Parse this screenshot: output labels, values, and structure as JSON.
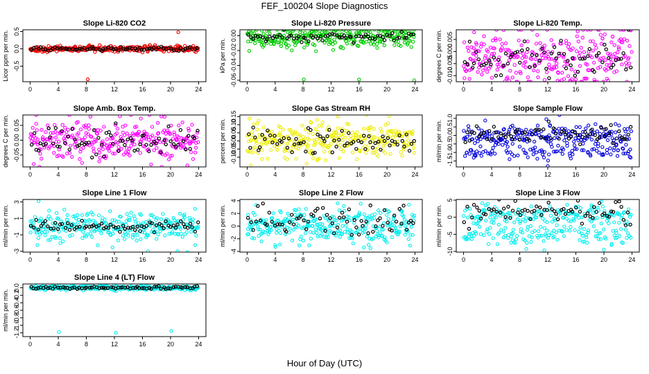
{
  "figure": {
    "title": "FEF_100204  Slope Diagnostics",
    "xlabel": "Hour of Day (UTC)"
  },
  "chart_data": [
    {
      "type": "scatter",
      "title": "Slope Li-820 CO2",
      "ylabel": "Licor ppm per min.",
      "xlim": [
        0,
        24
      ],
      "xticks": [
        0,
        4,
        8,
        12,
        16,
        20,
        24
      ],
      "ylim": [
        -0.95,
        0.55
      ],
      "yticks": [
        -0.5,
        0.0,
        0.5
      ],
      "ytick_labels": [
        "-0.5",
        "0.0",
        "0.5"
      ],
      "color": "#ee0000",
      "cloud_center": 0.0,
      "cloud_spread": 0.04,
      "black_center": 0.0,
      "black_spread": 0.03,
      "outliers": [
        [
          8.2,
          -0.88
        ],
        [
          21.1,
          0.48
        ]
      ]
    },
    {
      "type": "scatter",
      "title": "Slope Li-820 Pressure",
      "ylabel": "kPa per min.",
      "xlim": [
        0,
        24
      ],
      "xticks": [
        0,
        4,
        8,
        12,
        16,
        20,
        24
      ],
      "ylim": [
        -0.062,
        0.008
      ],
      "yticks": [
        -0.06,
        -0.04,
        -0.02,
        0.0
      ],
      "ytick_labels": [
        "-0.06",
        "-0.04",
        "-0.02",
        "0.00"
      ],
      "color": "#00cc00",
      "cloud_center": -0.002,
      "cloud_spread": 0.007,
      "black_center": -0.002,
      "black_spread": 0.003,
      "outliers": [
        [
          8.1,
          -0.059
        ],
        [
          16.0,
          -0.059
        ],
        [
          23.9,
          -0.06
        ]
      ]
    },
    {
      "type": "scatter",
      "title": "Slope Li-820 Temp.",
      "ylabel": "degrees C per min.",
      "xlim": [
        0,
        24
      ],
      "xticks": [
        0,
        4,
        8,
        12,
        16,
        20,
        24
      ],
      "ylim": [
        -0.0125,
        0.009
      ],
      "yticks": [
        -0.01,
        -0.005,
        0.0,
        0.005
      ],
      "ytick_labels": [
        "-0.010",
        "-0.005",
        "0.000",
        "0.005"
      ],
      "color": "#ff00ff",
      "cloud_center": -0.002,
      "cloud_spread": 0.006,
      "black_center": -0.003,
      "black_spread": 0.004,
      "outliers": [
        [
          6.5,
          -0.012
        ],
        [
          15.2,
          -0.012
        ],
        [
          20.6,
          -0.012
        ],
        [
          1.5,
          0.008
        ]
      ]
    },
    {
      "type": "scatter",
      "title": "Slope Amb. Box Temp.",
      "ylabel": "degrees C per min.",
      "xlim": [
        0,
        24
      ],
      "xticks": [
        0,
        4,
        8,
        12,
        16,
        20,
        24
      ],
      "ylim": [
        -0.09,
        0.085
      ],
      "yticks": [
        -0.05,
        0.0,
        0.05
      ],
      "ytick_labels": [
        "-0.05",
        "0.00",
        "0.05"
      ],
      "color": "#ff00ff",
      "cloud_center": 0.0,
      "cloud_spread": 0.035,
      "black_center": -0.005,
      "black_spread": 0.03,
      "outliers": [
        [
          0.5,
          -0.08
        ],
        [
          22.4,
          -0.085
        ],
        [
          18.7,
          0.08
        ]
      ]
    },
    {
      "type": "scatter",
      "title": "Slope Gas Stream RH",
      "ylabel": "percent per min.",
      "xlim": [
        0,
        24
      ],
      "xticks": [
        0,
        4,
        8,
        12,
        16,
        20,
        24
      ],
      "ylim": [
        -0.16,
        0.16
      ],
      "yticks": [
        -0.1,
        -0.05,
        0.0,
        0.05,
        0.1,
        0.15
      ],
      "ytick_labels": [
        "-0.10",
        "-0.05",
        "0.00",
        "0.05",
        "0.10",
        "0.15"
      ],
      "color": "#eeee00",
      "cloud_center": 0.0,
      "cloud_spread": 0.05,
      "black_center": 0.0,
      "black_spread": 0.04,
      "outliers": [
        [
          0.5,
          -0.15
        ],
        [
          10.0,
          0.13
        ],
        [
          13.0,
          0.15
        ],
        [
          8.5,
          -0.14
        ]
      ]
    },
    {
      "type": "scatter",
      "title": "Slope Sample Flow",
      "ylabel": "ml/min per min.",
      "xlim": [
        0,
        24
      ],
      "xticks": [
        0,
        4,
        8,
        12,
        16,
        20,
        24
      ],
      "ylim": [
        -1.85,
        1.2
      ],
      "yticks": [
        -1.5,
        -1.0,
        -0.5,
        0.0,
        0.5,
        1.0
      ],
      "ytick_labels": [
        "-1.5",
        "-1.0",
        "-0.5",
        "0.0",
        "0.5",
        "1.0"
      ],
      "color": "#0000dd",
      "cloud_center": 0.0,
      "cloud_spread": 0.3,
      "black_center": 0.05,
      "black_spread": 0.3,
      "lower_band": {
        "center": -1.0,
        "spread": 0.18
      },
      "outliers": [
        [
          12.0,
          -1.8
        ],
        [
          11.8,
          0.95
        ]
      ]
    },
    {
      "type": "scatter",
      "title": "Slope Line 1 Flow",
      "ylabel": "ml/min per min.",
      "xlim": [
        0,
        24
      ],
      "xticks": [
        0,
        4,
        8,
        12,
        16,
        20,
        24
      ],
      "ylim": [
        -3.1,
        3.3
      ],
      "yticks": [
        -3,
        -1,
        1,
        3
      ],
      "ytick_labels": [
        "-3",
        "-1",
        "1",
        "3"
      ],
      "color": "#00eeee",
      "cloud_center": 0.0,
      "cloud_spread": 0.9,
      "black_center": 0.0,
      "black_spread": 0.3,
      "outliers": [
        [
          1.2,
          3.1
        ],
        [
          16.8,
          -3.0
        ],
        [
          21.0,
          -3.0
        ]
      ]
    },
    {
      "type": "scatter",
      "title": "Slope Line 2 Flow",
      "ylabel": "ml/min per min.",
      "xlim": [
        0,
        24
      ],
      "xticks": [
        0,
        4,
        8,
        12,
        16,
        20,
        24
      ],
      "ylim": [
        -4.1,
        4.2
      ],
      "yticks": [
        -4,
        -2,
        0,
        2,
        4
      ],
      "ytick_labels": [
        "-4",
        "-2",
        "0",
        "2",
        "4"
      ],
      "color": "#00eeee",
      "cloud_center": 0.0,
      "cloud_spread": 1.3,
      "black_center": 0.8,
      "black_spread": 1.2,
      "outliers": [
        [
          4.0,
          -3.0
        ]
      ]
    },
    {
      "type": "scatter",
      "title": "Slope Line 3 Flow",
      "ylabel": "ml/min per min.",
      "xlim": [
        0,
        24
      ],
      "xticks": [
        0,
        4,
        8,
        12,
        16,
        20,
        24
      ],
      "ylim": [
        -10.2,
        5.2
      ],
      "yticks": [
        -10,
        -5,
        0,
        5
      ],
      "ytick_labels": [
        "-10",
        "-5",
        "0",
        "5"
      ],
      "color": "#00eeee",
      "cloud_center": 0.5,
      "cloud_spread": 1.5,
      "black_center": 1.5,
      "black_spread": 1.5,
      "lower_band": {
        "center": -5.2,
        "spread": 1.6
      },
      "outliers": [
        [
          11.5,
          -9.7
        ],
        [
          20.0,
          -9.5
        ]
      ]
    },
    {
      "type": "scatter",
      "title": "Slope Line 4 (LT) Flow",
      "ylabel": "ml/min per min.",
      "xlim": [
        0,
        24
      ],
      "xticks": [
        0,
        4,
        8,
        12,
        16,
        20,
        24
      ],
      "ylim": [
        -1.3,
        0.1
      ],
      "yticks": [
        -1.2,
        -1.0,
        -0.8,
        -0.6,
        -0.4,
        -0.2,
        0.0
      ],
      "ytick_labels": [
        "-1.2",
        "-1.0",
        "-0.8",
        "-0.6",
        "-0.4",
        "-0.2",
        "0.0"
      ],
      "color": "#00eeee",
      "cloud_center": 0.0,
      "cloud_spread": 0.03,
      "black_center": 0.0,
      "black_spread": 0.02,
      "outliers": [
        [
          4.1,
          -1.18
        ],
        [
          12.2,
          -1.2
        ],
        [
          20.1,
          -1.15
        ]
      ]
    }
  ]
}
